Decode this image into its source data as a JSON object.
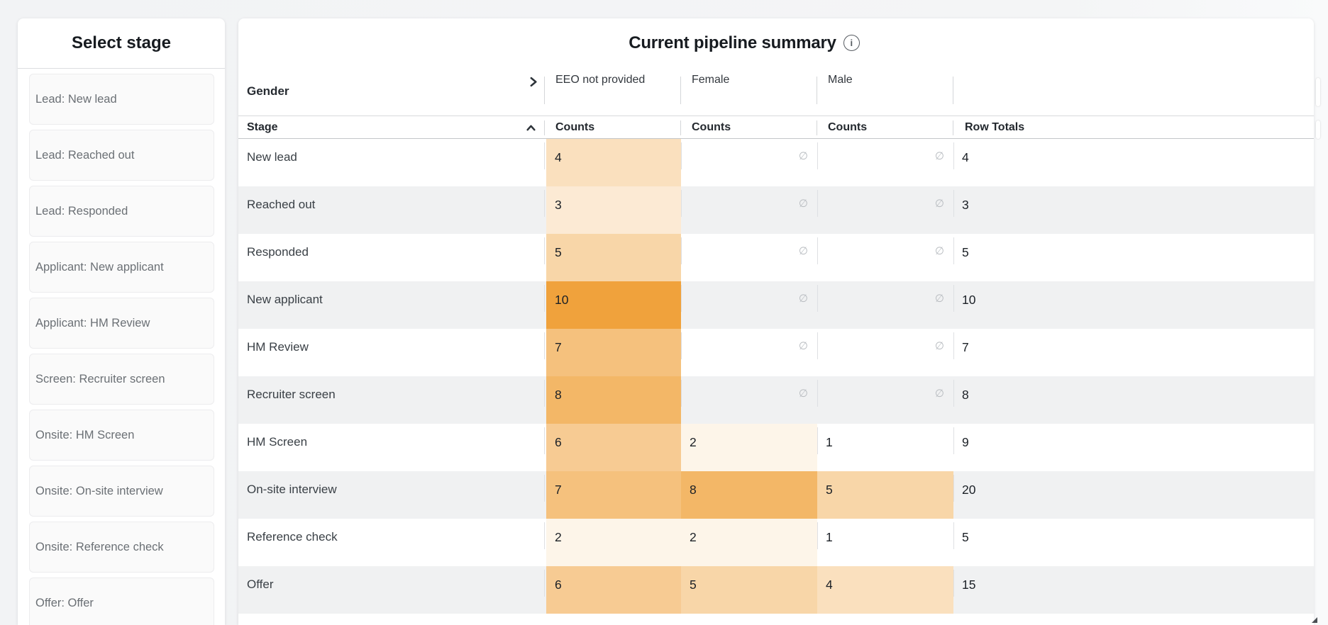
{
  "sidebar": {
    "title": "Select stage",
    "stages": [
      "Lead: New lead",
      "Lead: Reached out",
      "Lead: Responded",
      "Applicant: New applicant",
      "Applicant: HM Review",
      "Screen: Recruiter screen",
      "Onsite: HM Screen",
      "Onsite: On-site interview",
      "Onsite: Reference check",
      "Offer: Offer"
    ]
  },
  "main": {
    "title": "Current pipeline summary",
    "info_icon": "info-circle-icon",
    "group_header": {
      "label": "Gender",
      "expand_icon": "chevron-right-icon",
      "columns": [
        "EEO not provided",
        "Female",
        "Male"
      ]
    },
    "table": {
      "columns": [
        "Stage",
        "Counts",
        "Counts",
        "Counts",
        "Row Totals"
      ],
      "sort_icon": "chevron-up-icon",
      "empty_symbol": "∅",
      "rows": [
        {
          "stage": "New lead",
          "counts": [
            4,
            null,
            null
          ],
          "total": 4
        },
        {
          "stage": "Reached out",
          "counts": [
            3,
            null,
            null
          ],
          "total": 3
        },
        {
          "stage": "Responded",
          "counts": [
            5,
            null,
            null
          ],
          "total": 5
        },
        {
          "stage": "New applicant",
          "counts": [
            10,
            null,
            null
          ],
          "total": 10
        },
        {
          "stage": "HM Review",
          "counts": [
            7,
            null,
            null
          ],
          "total": 7
        },
        {
          "stage": "Recruiter screen",
          "counts": [
            8,
            null,
            null
          ],
          "total": 8
        },
        {
          "stage": "HM Screen",
          "counts": [
            6,
            2,
            1
          ],
          "total": 9
        },
        {
          "stage": "On-site interview",
          "counts": [
            7,
            8,
            5
          ],
          "total": 20
        },
        {
          "stage": "Reference check",
          "counts": [
            2,
            2,
            1
          ],
          "total": 5
        },
        {
          "stage": "Offer",
          "counts": [
            6,
            5,
            4
          ],
          "total": 15
        }
      ]
    },
    "heatmap": {
      "min_value": 1,
      "max_value": 10,
      "min_color": "#FFFFFF",
      "max_color": "#F0A23C"
    }
  }
}
